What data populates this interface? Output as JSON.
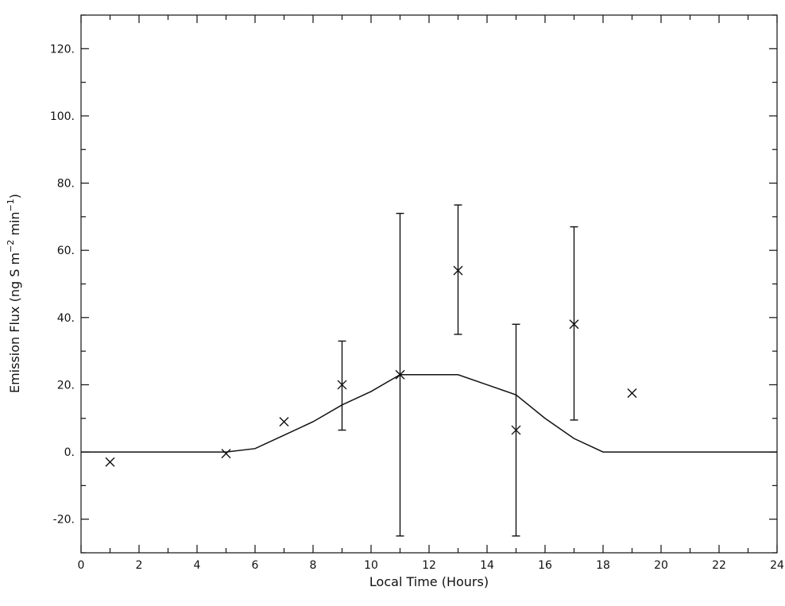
{
  "chart_data": {
    "type": "scatter",
    "title": "",
    "xlabel": "Local Time (Hours)",
    "ylabel": "Emission Flux (ng S m^-2 min^-1)",
    "ylabel_parts": {
      "prefix": "Emission Flux (ng S m",
      "exp1": "−2",
      "mid": " min",
      "exp2": "−1",
      "suffix": ")"
    },
    "xlim": [
      0,
      24
    ],
    "ylim": [
      -30,
      130
    ],
    "x_ticks": [
      0,
      2,
      4,
      6,
      8,
      10,
      12,
      14,
      16,
      18,
      20,
      22,
      24
    ],
    "x_tick_labels": [
      "0",
      "2",
      "4",
      "6",
      "8",
      "10",
      "12",
      "14",
      "16",
      "18",
      "20",
      "22",
      "24"
    ],
    "y_ticks": [
      -20,
      0,
      20,
      40,
      60,
      80,
      100,
      120
    ],
    "y_tick_labels": [
      "-20.",
      "0.",
      "20.",
      "40.",
      "60.",
      "80.",
      "100.",
      "120."
    ],
    "grid": false,
    "series": [
      {
        "kind": "points",
        "marker": "x",
        "x": [
          1,
          5,
          7,
          9,
          11,
          13,
          15,
          17,
          19
        ],
        "y": [
          -3,
          -0.5,
          9,
          20,
          23,
          54,
          6.5,
          38,
          17.5
        ],
        "error_low": [
          null,
          null,
          null,
          6.5,
          -25,
          35,
          null,
          9.5,
          null
        ],
        "error_high": [
          null,
          null,
          null,
          33,
          71,
          73.5,
          null,
          67,
          null
        ],
        "error_low_15": -25,
        "error_high_15": 38
      },
      {
        "kind": "line",
        "x": [
          0,
          5,
          6,
          7,
          8,
          9,
          10,
          11,
          12,
          13,
          14,
          15,
          16,
          17,
          18,
          24
        ],
        "y": [
          0,
          0,
          1,
          5,
          9,
          14,
          18,
          23,
          23,
          23,
          20,
          17,
          10,
          4,
          0,
          0
        ]
      }
    ]
  }
}
